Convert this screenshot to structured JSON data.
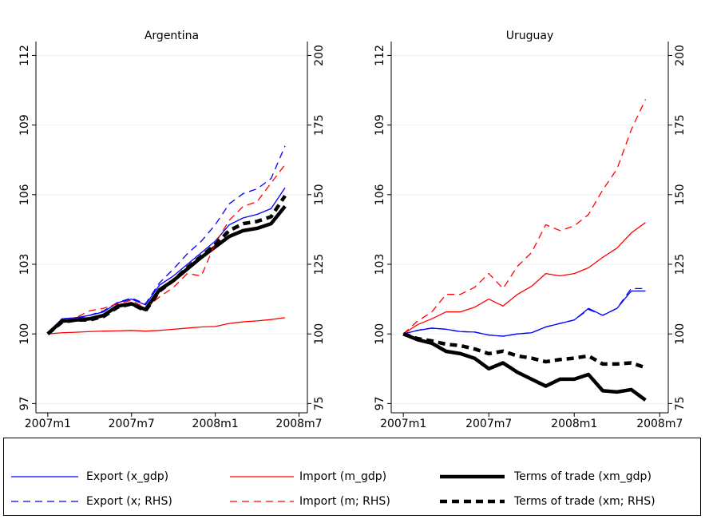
{
  "chart_data": [
    {
      "type": "line",
      "title": "Argentina",
      "x": [
        0,
        1,
        2,
        3,
        4,
        5,
        6,
        7,
        8,
        9,
        10,
        11,
        12,
        13,
        14,
        15,
        16,
        17
      ],
      "xlim": [
        -0.85,
        18.6
      ],
      "xticks": [
        {
          "value": 0,
          "label": "2007m1"
        },
        {
          "value": 6,
          "label": "2007m7"
        },
        {
          "value": 12,
          "label": "2008m1"
        },
        {
          "value": 18,
          "label": "2008m7"
        }
      ],
      "ylim": [
        96.6,
        112.6
      ],
      "yticks": [
        97,
        100,
        103,
        106,
        109,
        112
      ],
      "y2lim": [
        71.67,
        205
      ],
      "y2ticks": [
        75,
        100,
        125,
        150,
        175,
        200
      ],
      "grid": true,
      "series": [
        {
          "name": "Export (x_gdp)",
          "color": "#0000ff",
          "dash": false,
          "weight": "thin",
          "values": [
            100,
            100.65,
            100.7,
            100.8,
            100.95,
            101.35,
            101.5,
            101.25,
            102.1,
            102.5,
            103.0,
            103.5,
            104.0,
            104.7,
            105.0,
            105.15,
            105.4,
            106.3
          ]
        },
        {
          "name": "Import (m_gdp)",
          "color": "#ff0000",
          "dash": false,
          "weight": "thin",
          "values": [
            100,
            100.05,
            100.07,
            100.1,
            100.12,
            100.13,
            100.15,
            100.12,
            100.15,
            100.2,
            100.25,
            100.3,
            100.32,
            100.45,
            100.52,
            100.56,
            100.62,
            100.7
          ]
        },
        {
          "name": "Terms of trade (xm_gdp)",
          "color": "#000000",
          "dash": false,
          "weight": "thick",
          "values": [
            100,
            100.55,
            100.6,
            100.65,
            100.8,
            101.2,
            101.3,
            101.05,
            101.9,
            102.3,
            102.8,
            103.3,
            103.75,
            104.2,
            104.45,
            104.55,
            104.75,
            105.5
          ]
        },
        {
          "name": "Export (x; RHS)",
          "color": "#0000ff",
          "dash": true,
          "weight": "thin",
          "axis": "y2",
          "values": [
            100,
            105,
            105.4,
            106.7,
            108.3,
            111.3,
            112.9,
            110.8,
            118.3,
            123.3,
            128.8,
            133.3,
            139.2,
            146.7,
            150.4,
            152.1,
            155.8,
            167.5
          ]
        },
        {
          "name": "Import (m; RHS)",
          "color": "#ff0000",
          "dash": true,
          "weight": "thin",
          "axis": "y2",
          "values": [
            100,
            104.6,
            105.8,
            108.3,
            109.2,
            110.8,
            112.1,
            109.2,
            113.3,
            116.7,
            121.7,
            120.8,
            132.5,
            140.8,
            145.8,
            147.5,
            154.2,
            160.8
          ]
        },
        {
          "name": "Terms of trade (xm; RHS)",
          "color": "#000000",
          "dash": true,
          "weight": "thick",
          "axis": "y2",
          "values": [
            100,
            104.2,
            105,
            105,
            106.3,
            109.6,
            110.8,
            108.3,
            115.4,
            119.2,
            123.8,
            127.9,
            132.1,
            137.1,
            139.6,
            140.4,
            142.1,
            149.6
          ]
        }
      ]
    },
    {
      "type": "line",
      "title": "Uruguay",
      "x": [
        0,
        1,
        2,
        3,
        4,
        5,
        6,
        7,
        8,
        9,
        10,
        11,
        12,
        13,
        14,
        15,
        16,
        17
      ],
      "xlim": [
        -0.85,
        18.6
      ],
      "xticks": [
        {
          "value": 0,
          "label": "2007m1"
        },
        {
          "value": 6,
          "label": "2007m7"
        },
        {
          "value": 12,
          "label": "2008m1"
        },
        {
          "value": 18,
          "label": "2008m7"
        }
      ],
      "ylim": [
        96.6,
        112.6
      ],
      "yticks": [
        97,
        100,
        103,
        106,
        109,
        112
      ],
      "y2lim": [
        71.67,
        205
      ],
      "y2ticks": [
        75,
        100,
        125,
        150,
        175,
        200
      ],
      "grid": true,
      "series": [
        {
          "color": "#0000ff",
          "dash": false,
          "weight": "thin",
          "values": [
            100,
            100.15,
            100.25,
            100.2,
            100.1,
            100.08,
            99.95,
            99.9,
            100.0,
            100.05,
            100.3,
            100.45,
            100.6,
            101.1,
            100.8,
            101.1,
            101.85,
            101.85
          ]
        },
        {
          "color": "#ff0000",
          "dash": false,
          "weight": "thin",
          "values": [
            100,
            100.4,
            100.65,
            100.95,
            100.95,
            101.15,
            101.5,
            101.2,
            101.7,
            102.05,
            102.6,
            102.5,
            102.6,
            102.85,
            103.3,
            103.7,
            104.35,
            104.8
          ]
        },
        {
          "color": "#000000",
          "dash": false,
          "weight": "thick",
          "values": [
            100,
            99.75,
            99.6,
            99.25,
            99.15,
            98.95,
            98.5,
            98.75,
            98.35,
            98.05,
            97.75,
            98.05,
            98.05,
            98.25,
            97.55,
            97.5,
            97.6,
            97.15
          ]
        },
        {
          "color": "#0000ff",
          "dash": true,
          "weight": "thin",
          "axis": "y2",
          "values": [
            100,
            101.3,
            102.1,
            101.7,
            100.8,
            100.7,
            99.6,
            99.2,
            100,
            100.4,
            102.5,
            103.8,
            105,
            108.8,
            106.7,
            109.2,
            116.3,
            116.3
          ]
        },
        {
          "color": "#ff0000",
          "dash": true,
          "weight": "thin",
          "axis": "y2",
          "values": [
            100,
            104.6,
            107.9,
            114.2,
            114.2,
            116.7,
            121.7,
            116.3,
            124.2,
            129.2,
            139.2,
            137.1,
            138.8,
            142.9,
            151.7,
            159.2,
            173.3,
            184.2
          ]
        },
        {
          "color": "#000000",
          "dash": true,
          "weight": "thick",
          "axis": "y2",
          "values": [
            100,
            98.3,
            97.5,
            96.3,
            95.8,
            94.6,
            92.9,
            93.8,
            92.1,
            91.3,
            90,
            90.8,
            91.3,
            92.1,
            89.2,
            89.2,
            89.6,
            87.9
          ]
        }
      ]
    }
  ]
}
